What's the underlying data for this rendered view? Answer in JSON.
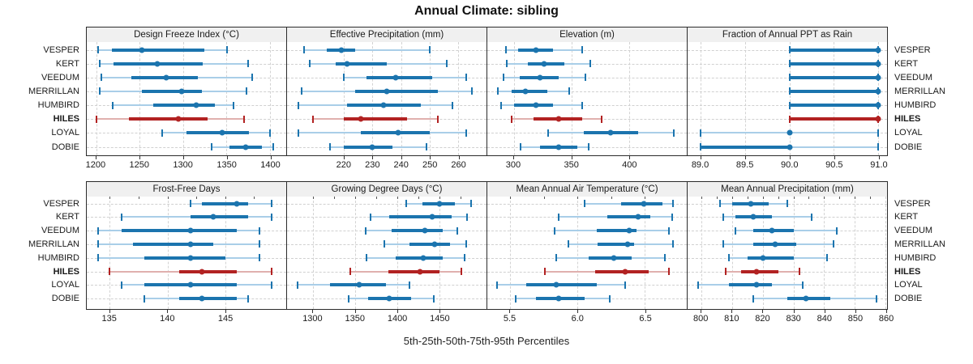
{
  "title": "Annual Climate: sibling",
  "caption": "5th-25th-50th-75th-95th Percentiles",
  "colors": {
    "series_normal": "#1b74ae",
    "series_normal_light": "#a9cee8",
    "series_highlight": "#b22222",
    "series_highlight_light": "#e0b0ae",
    "strip_background": "#f0f0f0",
    "panel_border": "#2b2b2b",
    "gridline": "#d0d0d0"
  },
  "chart_data": {
    "type": "dotplot",
    "subtype": "percentile-intervals",
    "percentiles": [
      5,
      25,
      50,
      75,
      95
    ],
    "legend": "thin line = 5th-95th, thick bar = 25th-75th, dot = 50th percentile",
    "sites": [
      "VESPER",
      "KERT",
      "VEEDUM",
      "MERRILLAN",
      "HUMBIRD",
      "HILES",
      "LOYAL",
      "DOBIE"
    ],
    "highlight_site": "HILES",
    "grid": "dashed",
    "panels": [
      {
        "title": "Design Freeze Index (°C)",
        "grid_row": 0,
        "grid_col": 0,
        "xlim": [
          1189,
          1419
        ],
        "ticks": [
          1200,
          1250,
          1300,
          1350,
          1400
        ],
        "tick_labels": [
          "1200",
          "1250",
          "1300",
          "1350",
          "1400"
        ],
        "values": {
          "VESPER": [
            1202,
            1218,
            1253,
            1325,
            1351
          ],
          "KERT": [
            1204,
            1220,
            1270,
            1323,
            1375
          ],
          "VEEDUM": [
            1206,
            1240,
            1281,
            1317,
            1380
          ],
          "MERRILLAN": [
            1204,
            1253,
            1298,
            1322,
            1373
          ],
          "HUMBIRD": [
            1219,
            1266,
            1315,
            1337,
            1358
          ],
          "HILES": [
            1200,
            1238,
            1295,
            1328,
            1370
          ],
          "LOYAL": [
            1276,
            1304,
            1345,
            1376,
            1400
          ],
          "DOBIE": [
            1333,
            1354,
            1372,
            1391,
            1404
          ]
        }
      },
      {
        "title": "Effective Precipitation (mm)",
        "grid_row": 0,
        "grid_col": 1,
        "xlim": [
          200,
          270
        ],
        "ticks": [
          220,
          230,
          240,
          250,
          260
        ],
        "tick_labels": [
          "220",
          "230",
          "240",
          "250",
          "260"
        ],
        "values": {
          "VESPER": [
            206,
            214,
            219,
            224,
            250
          ],
          "KERT": [
            208,
            217,
            221,
            235,
            256
          ],
          "VEEDUM": [
            220,
            228,
            238,
            251,
            263
          ],
          "MERRILLAN": [
            205,
            224,
            235,
            253,
            265
          ],
          "HUMBIRD": [
            204,
            221,
            234,
            247,
            258
          ],
          "HILES": [
            209,
            220,
            226,
            242,
            253
          ],
          "LOYAL": [
            204,
            226,
            239,
            250,
            263
          ],
          "DOBIE": [
            215,
            220,
            230,
            237,
            249
          ]
        }
      },
      {
        "title": "Elevation (m)",
        "grid_row": 0,
        "grid_col": 2,
        "xlim": [
          277,
          450
        ],
        "ticks": [
          300,
          350,
          400
        ],
        "tick_labels": [
          "300",
          "350",
          "400"
        ],
        "values": {
          "VESPER": [
            293,
            304,
            319,
            334,
            359
          ],
          "KERT": [
            294,
            312,
            326,
            344,
            366
          ],
          "VEEDUM": [
            291,
            305,
            323,
            339,
            362
          ],
          "MERRILLAN": [
            286,
            298,
            310,
            329,
            348
          ],
          "HUMBIRD": [
            289,
            300,
            319,
            334,
            359
          ],
          "HILES": [
            298,
            317,
            339,
            359,
            376
          ],
          "LOYAL": [
            330,
            361,
            384,
            408,
            439
          ],
          "DOBIE": [
            306,
            323,
            339,
            355,
            365
          ]
        }
      },
      {
        "title": "Fraction of Annual PPT as Rain",
        "grid_row": 0,
        "grid_col": 3,
        "xlim": [
          88.85,
          91.1
        ],
        "ticks": [
          89.0,
          89.5,
          90.0,
          90.5,
          91.0
        ],
        "tick_labels": [
          "89.0",
          "89.5",
          "90.0",
          "90.5",
          "91.0"
        ],
        "values": {
          "VESPER": [
            90,
            90,
            91,
            91,
            91
          ],
          "KERT": [
            90,
            90,
            91,
            91,
            91
          ],
          "VEEDUM": [
            90,
            90,
            91,
            91,
            91
          ],
          "MERRILLAN": [
            90,
            90,
            91,
            91,
            91
          ],
          "HUMBIRD": [
            90,
            90,
            91,
            91,
            91
          ],
          "HILES": [
            90,
            90,
            91,
            91,
            91
          ],
          "LOYAL": [
            89,
            90,
            90,
            90,
            91
          ],
          "DOBIE": [
            89,
            89,
            90,
            90,
            91
          ]
        }
      },
      {
        "title": "Frost-Free Days",
        "grid_row": 1,
        "grid_col": 0,
        "xlim": [
          133,
          150.3
        ],
        "ticks": [
          135,
          140,
          145
        ],
        "tick_labels": [
          "135",
          "140",
          "145"
        ],
        "values": {
          "VESPER": [
            142,
            143,
            146,
            147,
            149
          ],
          "KERT": [
            136,
            142,
            144,
            147,
            149
          ],
          "VEEDUM": [
            134,
            136,
            142,
            146,
            148
          ],
          "MERRILLAN": [
            134,
            137,
            142,
            144,
            148
          ],
          "HUMBIRD": [
            134,
            138,
            142,
            145,
            148
          ],
          "HILES": [
            135,
            141,
            143,
            146,
            149
          ],
          "LOYAL": [
            136,
            138,
            142,
            146,
            149
          ],
          "DOBIE": [
            138,
            141,
            143,
            146,
            147
          ]
        }
      },
      {
        "title": "Growing Degree Days (°C)",
        "grid_row": 1,
        "grid_col": 1,
        "xlim": [
          1269,
          1506
        ],
        "ticks": [
          1300,
          1350,
          1400,
          1450
        ],
        "tick_labels": [
          "1300",
          "1350",
          "1400",
          "1450"
        ],
        "values": {
          "VESPER": [
            1411,
            1430,
            1450,
            1468,
            1488
          ],
          "KERT": [
            1368,
            1390,
            1441,
            1465,
            1483
          ],
          "VEEDUM": [
            1362,
            1393,
            1433,
            1454,
            1471
          ],
          "MERRILLAN": [
            1385,
            1414,
            1444,
            1463,
            1482
          ],
          "HUMBIRD": [
            1363,
            1398,
            1431,
            1454,
            1480
          ],
          "HILES": [
            1344,
            1389,
            1427,
            1450,
            1476
          ],
          "LOYAL": [
            1282,
            1320,
            1355,
            1387,
            1414
          ],
          "DOBIE": [
            1342,
            1365,
            1390,
            1416,
            1443
          ]
        }
      },
      {
        "title": "Mean Annual Air Temperature (°C)",
        "grid_row": 1,
        "grid_col": 2,
        "xlim": [
          5.33,
          6.81
        ],
        "ticks": [
          5.5,
          6.0,
          6.5
        ],
        "tick_labels": [
          "5.5",
          "6.0",
          "6.5"
        ],
        "values": {
          "VESPER": [
            6.05,
            6.32,
            6.49,
            6.63,
            6.71
          ],
          "KERT": [
            5.86,
            6.22,
            6.45,
            6.54,
            6.7
          ],
          "VEEDUM": [
            5.83,
            6.14,
            6.38,
            6.44,
            6.68
          ],
          "MERRILLAN": [
            5.93,
            6.15,
            6.37,
            6.42,
            6.71
          ],
          "HUMBIRD": [
            5.84,
            6.08,
            6.27,
            6.4,
            6.65
          ],
          "HILES": [
            5.76,
            6.13,
            6.35,
            6.53,
            6.68
          ],
          "LOYAL": [
            5.4,
            5.62,
            5.84,
            6.14,
            6.35
          ],
          "DOBIE": [
            5.54,
            5.69,
            5.86,
            6.05,
            6.24
          ]
        }
      },
      {
        "title": "Mean Annual Precipitation (mm)",
        "grid_row": 1,
        "grid_col": 3,
        "xlim": [
          795.5,
          860.5
        ],
        "ticks": [
          800,
          810,
          820,
          830,
          840,
          850,
          860
        ],
        "tick_labels": [
          "800",
          "810",
          "820",
          "830",
          "840",
          "850",
          "860"
        ],
        "values": {
          "VESPER": [
            806,
            810,
            816,
            822,
            828
          ],
          "KERT": [
            807,
            811,
            817,
            823,
            836
          ],
          "VEEDUM": [
            811,
            817,
            823,
            830,
            844
          ],
          "MERRILLAN": [
            807,
            817,
            824,
            831,
            843
          ],
          "HUMBIRD": [
            809,
            815,
            820,
            830,
            841
          ],
          "HILES": [
            808,
            813,
            818,
            825,
            832
          ],
          "LOYAL": [
            799,
            809,
            818,
            823,
            833
          ],
          "DOBIE": [
            817,
            828,
            834,
            842,
            857
          ]
        }
      }
    ]
  }
}
